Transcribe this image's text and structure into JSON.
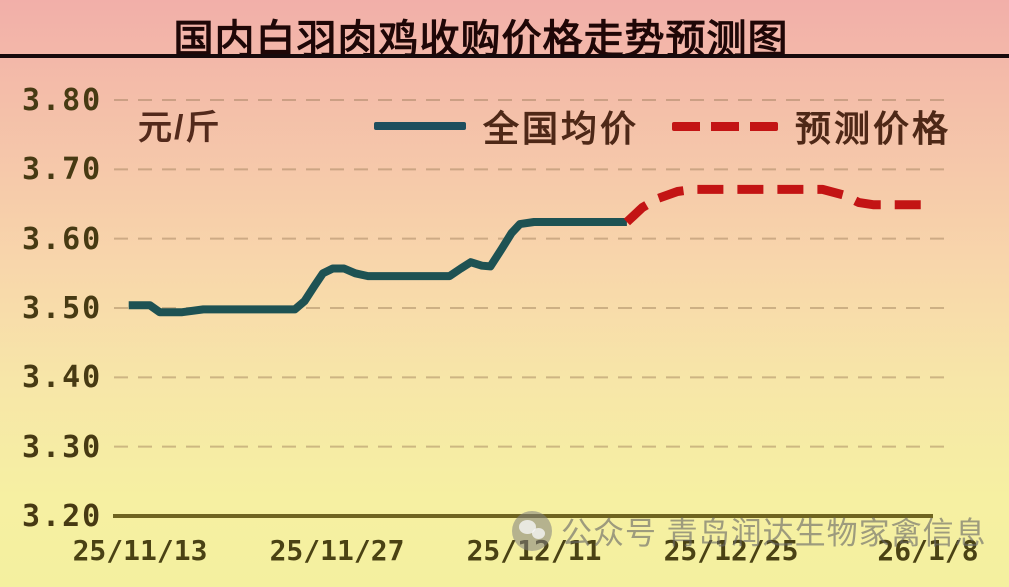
{
  "title": "国内白羽肉鸡收购价格走势预测图",
  "unit_label": "元/斤",
  "legend": [
    {
      "key": "national-average",
      "label": "全国均价",
      "color": "#1e4f5e",
      "style": "solid"
    },
    {
      "key": "forecast",
      "label": "预测价格",
      "color": "#c31414",
      "style": "dashed"
    }
  ],
  "watermark": {
    "logo": "wechat-official-account-logo",
    "text": "公众号 青岛润达生物家禽信息"
  },
  "colors": {
    "background_top": "#f2afa9",
    "background_mid": "#f8d6ab",
    "background_bottom": "#f4f09f",
    "title_text": "#1f0707",
    "title_rule": "#170a0c",
    "axis_text": "#473a13",
    "grid": "#9a7a57",
    "baseline": "#6f6420",
    "national_line": "#1e5253",
    "forecast_line": "#c31414",
    "legend_text": "#4e2817",
    "watermark_text": "#686868"
  },
  "chart_data": {
    "type": "line",
    "title": "国内白羽肉鸡收购价格走势预测图",
    "ylabel": "元/斤",
    "xlabel": "",
    "ylim": [
      3.2,
      3.8
    ],
    "y_ticks": [
      3.8,
      3.7,
      3.6,
      3.5,
      3.4,
      3.3,
      3.2
    ],
    "x_ticks": [
      "25/11/13",
      "25/11/27",
      "25/12/11",
      "25/12/25",
      "26/1/8"
    ],
    "x_tick_interval_days": 14,
    "grid": "horizontal-dashed",
    "legend_position": "top",
    "series": [
      {
        "name": "全国均价",
        "style": "solid",
        "color": "#1e5253",
        "points_days_value": [
          [
            -0.8,
            3.504
          ],
          [
            0.7,
            3.504
          ],
          [
            1.4,
            3.494
          ],
          [
            3.0,
            3.494
          ],
          [
            4.5,
            3.498
          ],
          [
            11.0,
            3.498
          ],
          [
            11.7,
            3.51
          ],
          [
            12.4,
            3.532
          ],
          [
            13.0,
            3.55
          ],
          [
            13.7,
            3.557
          ],
          [
            14.5,
            3.557
          ],
          [
            15.3,
            3.55
          ],
          [
            16.2,
            3.546
          ],
          [
            22.0,
            3.546
          ],
          [
            22.8,
            3.557
          ],
          [
            23.5,
            3.566
          ],
          [
            24.3,
            3.561
          ],
          [
            24.9,
            3.56
          ],
          [
            25.7,
            3.585
          ],
          [
            26.4,
            3.608
          ],
          [
            27.0,
            3.621
          ],
          [
            28.0,
            3.624
          ],
          [
            34.6,
            3.624
          ]
        ]
      },
      {
        "name": "预测价格",
        "style": "dashed",
        "color": "#c31414",
        "points_days_value": [
          [
            34.6,
            3.624
          ],
          [
            35.7,
            3.645
          ],
          [
            36.8,
            3.658
          ],
          [
            38.2,
            3.668
          ],
          [
            39.3,
            3.671
          ],
          [
            48.5,
            3.671
          ],
          [
            50.0,
            3.663
          ],
          [
            51.1,
            3.652
          ],
          [
            52.1,
            3.649
          ],
          [
            55.5,
            3.649
          ]
        ]
      }
    ]
  }
}
